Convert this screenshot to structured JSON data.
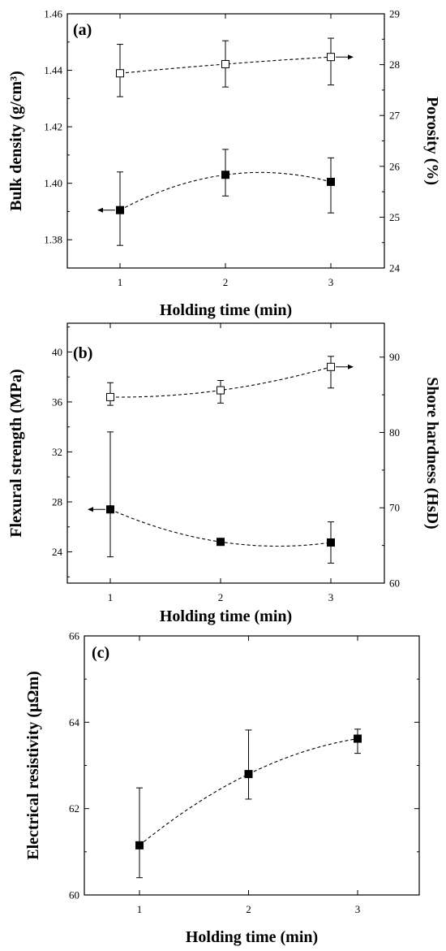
{
  "chart_data": [
    {
      "type": "scatter",
      "panel_label": "(a)",
      "xlabel": "Holding time (min)",
      "ylabel": "Bulk density (g/cm³)",
      "y2label": "Porosity (%)",
      "x": [
        1,
        2,
        3
      ],
      "xticks": [
        "1",
        "2",
        "3"
      ],
      "ylim": [
        1.37,
        1.46
      ],
      "yticks": [
        "1.38",
        "1.40",
        "1.42",
        "1.44",
        "1.46"
      ],
      "y2lim": [
        24,
        29
      ],
      "y2ticks": [
        "24",
        "25",
        "26",
        "27",
        "28",
        "29"
      ],
      "series": [
        {
          "axis": "left",
          "marker": "filled-square",
          "values": [
            1.3905,
            1.403,
            1.4005
          ],
          "err_low": [
            1.378,
            1.3955,
            1.3895
          ],
          "err_high": [
            1.404,
            1.412,
            1.409
          ],
          "fit": "dashed",
          "arrow": "left"
        },
        {
          "axis": "right",
          "marker": "open-square",
          "values": [
            27.83,
            28.01,
            28.15
          ],
          "err_low": [
            27.37,
            27.56,
            27.6
          ],
          "err_high": [
            28.4,
            28.47,
            28.52
          ],
          "fit": "dashed",
          "arrow": "right"
        }
      ]
    },
    {
      "type": "scatter",
      "panel_label": "(b)",
      "xlabel": "Holding time (min)",
      "ylabel": "Flexural strength (MPa)",
      "y2label": "Shore hardness (HsD)",
      "x": [
        1,
        2,
        3
      ],
      "xticks": [
        "1",
        "2",
        "3"
      ],
      "ylim": [
        21.5,
        42.3
      ],
      "yticks": [
        "24",
        "28",
        "32",
        "36",
        "40"
      ],
      "y2lim": [
        60,
        94.5
      ],
      "y2ticks": [
        "60",
        "70",
        "80",
        "90"
      ],
      "series": [
        {
          "axis": "left",
          "marker": "filled-square",
          "values": [
            27.4,
            24.8,
            24.75
          ],
          "err_low": [
            23.6,
            24.8,
            23.1
          ],
          "err_high": [
            33.6,
            24.8,
            26.4
          ],
          "fit": "dotted",
          "arrow": "left"
        },
        {
          "axis": "right",
          "marker": "open-square",
          "values": [
            84.7,
            85.6,
            88.7
          ],
          "err_low": [
            83.6,
            83.9,
            85.9
          ],
          "err_high": [
            86.6,
            86.9,
            90.1
          ],
          "fit": "dashed",
          "arrow": "right"
        }
      ]
    },
    {
      "type": "scatter",
      "panel_label": "(c)",
      "xlabel": "Holding time (min)",
      "ylabel": "Electrical resistivity (μΩm)",
      "x": [
        1,
        2,
        3
      ],
      "xticks": [
        "1",
        "2",
        "3"
      ],
      "ylim": [
        60,
        66
      ],
      "yticks": [
        "60",
        "62",
        "64",
        "66"
      ],
      "series": [
        {
          "axis": "left",
          "marker": "filled-square",
          "values": [
            61.15,
            62.8,
            63.62
          ],
          "err_low": [
            60.4,
            62.22,
            63.28
          ],
          "err_high": [
            62.48,
            63.82,
            63.84
          ],
          "fit": "dashed"
        }
      ]
    }
  ]
}
